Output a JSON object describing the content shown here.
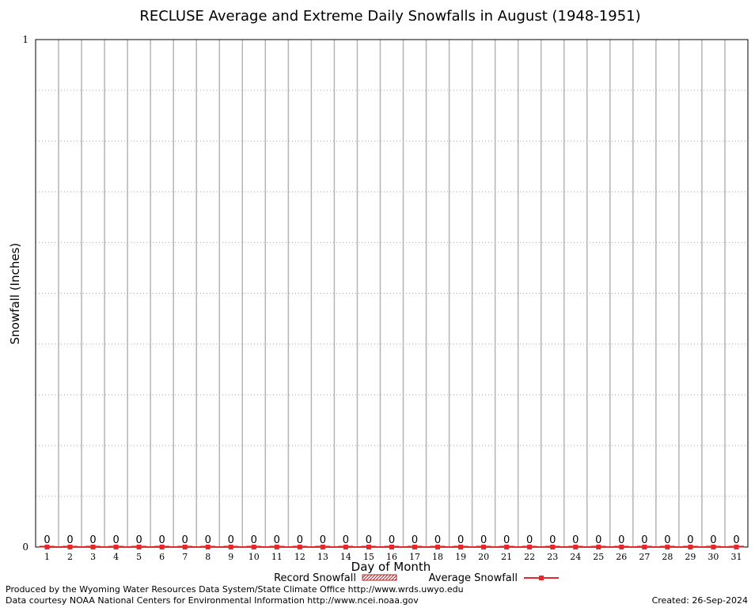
{
  "chart_data": {
    "type": "bar",
    "title": "RECLUSE Average and Extreme Daily Snowfalls in August (1948-1951)",
    "xlabel": "Day of Month",
    "ylabel": "Snowfall (Inches)",
    "ylim": [
      0,
      1
    ],
    "y_tick_labels": [
      "0",
      "1"
    ],
    "grid": true,
    "categories": [
      "1",
      "2",
      "3",
      "4",
      "5",
      "6",
      "7",
      "8",
      "9",
      "10",
      "11",
      "12",
      "13",
      "14",
      "15",
      "16",
      "17",
      "18",
      "19",
      "20",
      "21",
      "22",
      "23",
      "24",
      "25",
      "26",
      "27",
      "28",
      "29",
      "30",
      "31"
    ],
    "series": [
      {
        "name": "Record Snowfall",
        "kind": "bar",
        "color": "#b22222",
        "values": [
          0,
          0,
          0,
          0,
          0,
          0,
          0,
          0,
          0,
          0,
          0,
          0,
          0,
          0,
          0,
          0,
          0,
          0,
          0,
          0,
          0,
          0,
          0,
          0,
          0,
          0,
          0,
          0,
          0,
          0,
          0
        ],
        "data_labels": [
          "0",
          "0",
          "0",
          "0",
          "0",
          "0",
          "0",
          "0",
          "0",
          "0",
          "0",
          "0",
          "0",
          "0",
          "0",
          "0",
          "0",
          "0",
          "0",
          "0",
          "0",
          "0",
          "0",
          "0",
          "0",
          "0",
          "0",
          "0",
          "0",
          "0",
          "0"
        ]
      },
      {
        "name": "Average Snowfall",
        "kind": "line",
        "color": "#e8262b",
        "values": [
          0,
          0,
          0,
          0,
          0,
          0,
          0,
          0,
          0,
          0,
          0,
          0,
          0,
          0,
          0,
          0,
          0,
          0,
          0,
          0,
          0,
          0,
          0,
          0,
          0,
          0,
          0,
          0,
          0,
          0,
          0
        ]
      }
    ],
    "legend_position": "bottom-center"
  },
  "footer": {
    "produced_by": "Produced by the Wyoming Water Resources Data System/State Climate Office http://www.wrds.uwyo.edu",
    "data_courtesy": "Data courtesy NOAA National Centers for Environmental Information http://www.ncei.noaa.gov",
    "created": "Created: 26-Sep-2024"
  }
}
